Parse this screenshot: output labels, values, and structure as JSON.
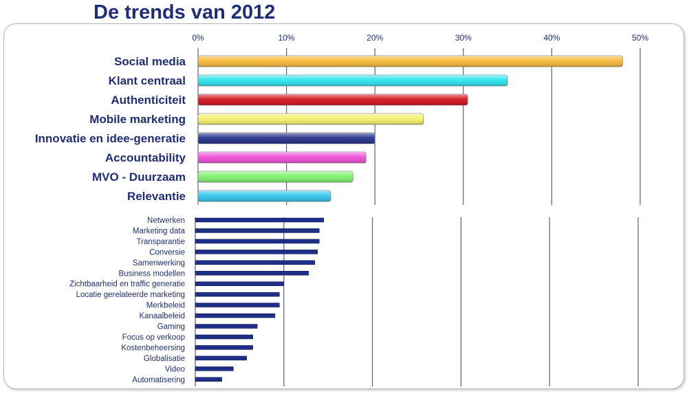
{
  "title": "De trends van 2012",
  "chart_data": [
    {
      "type": "bar",
      "orientation": "horizontal",
      "xlim": [
        0,
        50
      ],
      "ticks": [
        "0%",
        "10%",
        "20%",
        "30%",
        "40%",
        "50%"
      ],
      "grid": true,
      "categories": [
        "Social media",
        "Klant centraal",
        "Authenticiteit",
        "Mobile marketing",
        "Innovatie en idee-generatie",
        "Accountability",
        "MVO - Duurzaam",
        "Relevantie"
      ],
      "values": [
        48,
        35,
        30.5,
        25.5,
        20,
        19,
        17.5,
        15
      ],
      "colors": [
        "#f7b733",
        "#27e3ec",
        "#d2101a",
        "#f4f06a",
        "#1f2e86",
        "#f04ad6",
        "#7df06a",
        "#2ec4ec"
      ]
    },
    {
      "type": "bar",
      "orientation": "horizontal",
      "xlim": [
        0,
        50
      ],
      "grid": true,
      "categories": [
        "Netwerken",
        "Marketing data",
        "Transparantie",
        "Conversie",
        "Samenwerking",
        "Business modellen",
        "Zichtbaarheid en traffic generatie",
        "Locatie gerelateerde marketing",
        "Merkbeleid",
        "Kanaalbeleid",
        "Gaming",
        "Focus op verkoop",
        "Kostenbeheersing",
        "Globalisatie",
        "Video",
        "Automatisering"
      ],
      "values": [
        14.5,
        14,
        14,
        13.8,
        13.5,
        12.8,
        10,
        9.5,
        9.5,
        9,
        7,
        6.5,
        6.5,
        5.8,
        4.3,
        3
      ],
      "color": "#1f2e86"
    }
  ]
}
